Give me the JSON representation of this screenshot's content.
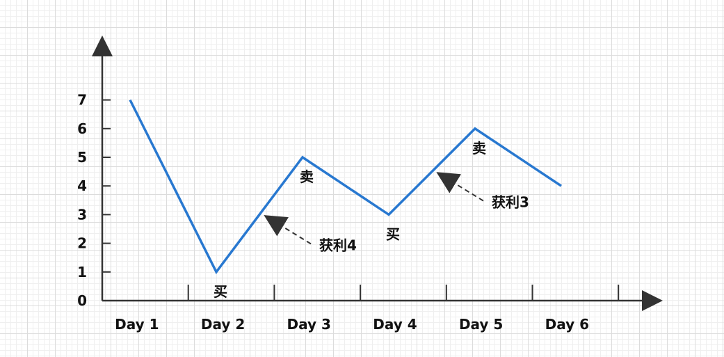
{
  "chart_data": {
    "type": "line",
    "title": "",
    "xlabel": "",
    "ylabel": "",
    "categories": [
      "Day 1",
      "Day 2",
      "Day 3",
      "Day 4",
      "Day 5",
      "Day 6"
    ],
    "y_ticks": [
      "0",
      "1",
      "2",
      "3",
      "4",
      "5",
      "6",
      "7"
    ],
    "ylim": [
      0,
      7
    ],
    "grid": true,
    "series": [
      {
        "values": [
          7,
          1,
          5,
          3,
          6,
          4
        ],
        "color": "#2878d0"
      }
    ],
    "annotations": {
      "point_labels": [
        {
          "category": "Day 2",
          "value": 1,
          "text": "买"
        },
        {
          "category": "Day 3",
          "value": 5,
          "text": "卖"
        },
        {
          "category": "Day 4",
          "value": 3,
          "text": "买"
        },
        {
          "category": "Day 5",
          "value": 6,
          "text": "卖"
        }
      ],
      "profit_arrows": [
        {
          "text": "获利4",
          "between": [
            "Day 2",
            "Day 3"
          ]
        },
        {
          "text": "获利3",
          "between": [
            "Day 4",
            "Day 5"
          ]
        }
      ]
    },
    "colors": {
      "line": "#2878d0",
      "axis": "#333333",
      "text": "#111111",
      "arrow": "#333333"
    }
  }
}
